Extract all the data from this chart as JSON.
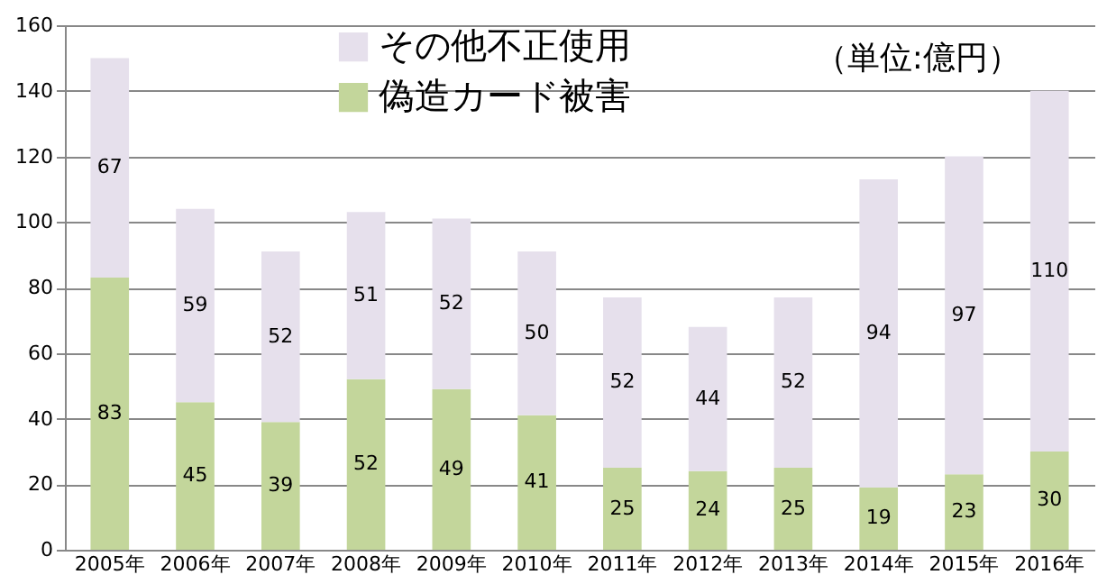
{
  "chart_data": {
    "type": "bar",
    "stacked": true,
    "categories": [
      "2005年",
      "2006年",
      "2007年",
      "2008年",
      "2009年",
      "2010年",
      "2011年",
      "2012年",
      "2013年",
      "2014年",
      "2015年",
      "2016年"
    ],
    "series": [
      {
        "name": "偽造カード被害",
        "color": "#c3d69b",
        "values": [
          83,
          45,
          39,
          52,
          49,
          41,
          25,
          24,
          25,
          19,
          23,
          30
        ]
      },
      {
        "name": "その他不正使用",
        "color": "#e6e0ec",
        "values": [
          67,
          59,
          52,
          51,
          52,
          50,
          52,
          44,
          52,
          94,
          97,
          110
        ]
      }
    ],
    "ylim": [
      0,
      160
    ],
    "yticks": [
      0,
      20,
      40,
      60,
      80,
      100,
      120,
      140,
      160
    ],
    "grid": "y",
    "legend": "top",
    "data_labels": true,
    "annotations": [
      "（単位:億円）"
    ]
  }
}
